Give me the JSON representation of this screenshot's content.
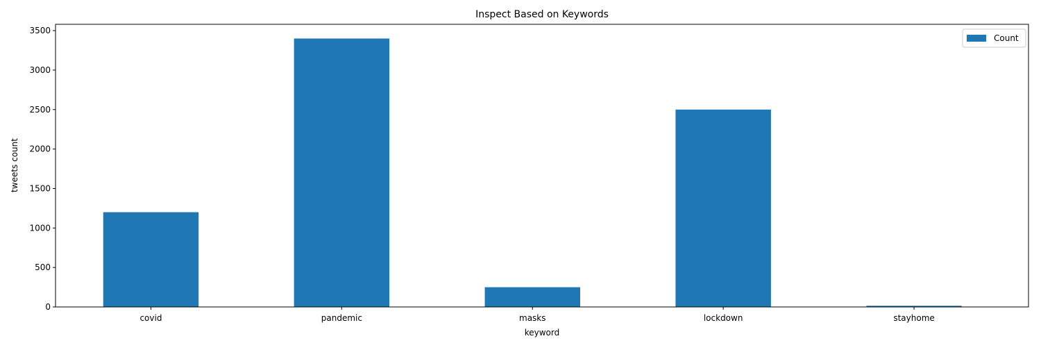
{
  "chart_data": {
    "type": "bar",
    "title": "Inspect Based on Keywords",
    "xlabel": "keyword",
    "ylabel": "tweets count",
    "categories": [
      "covid",
      "pandemic",
      "masks",
      "lockdown",
      "stayhome"
    ],
    "series": [
      {
        "name": "Count",
        "values": [
          1200,
          3400,
          250,
          2500,
          15
        ],
        "color": "#1f77b4"
      }
    ],
    "ylim": [
      0,
      3580
    ],
    "yticks": [
      0,
      500,
      1000,
      1500,
      2000,
      2500,
      3000,
      3500
    ],
    "grid": false,
    "legend_position": "top-right"
  }
}
